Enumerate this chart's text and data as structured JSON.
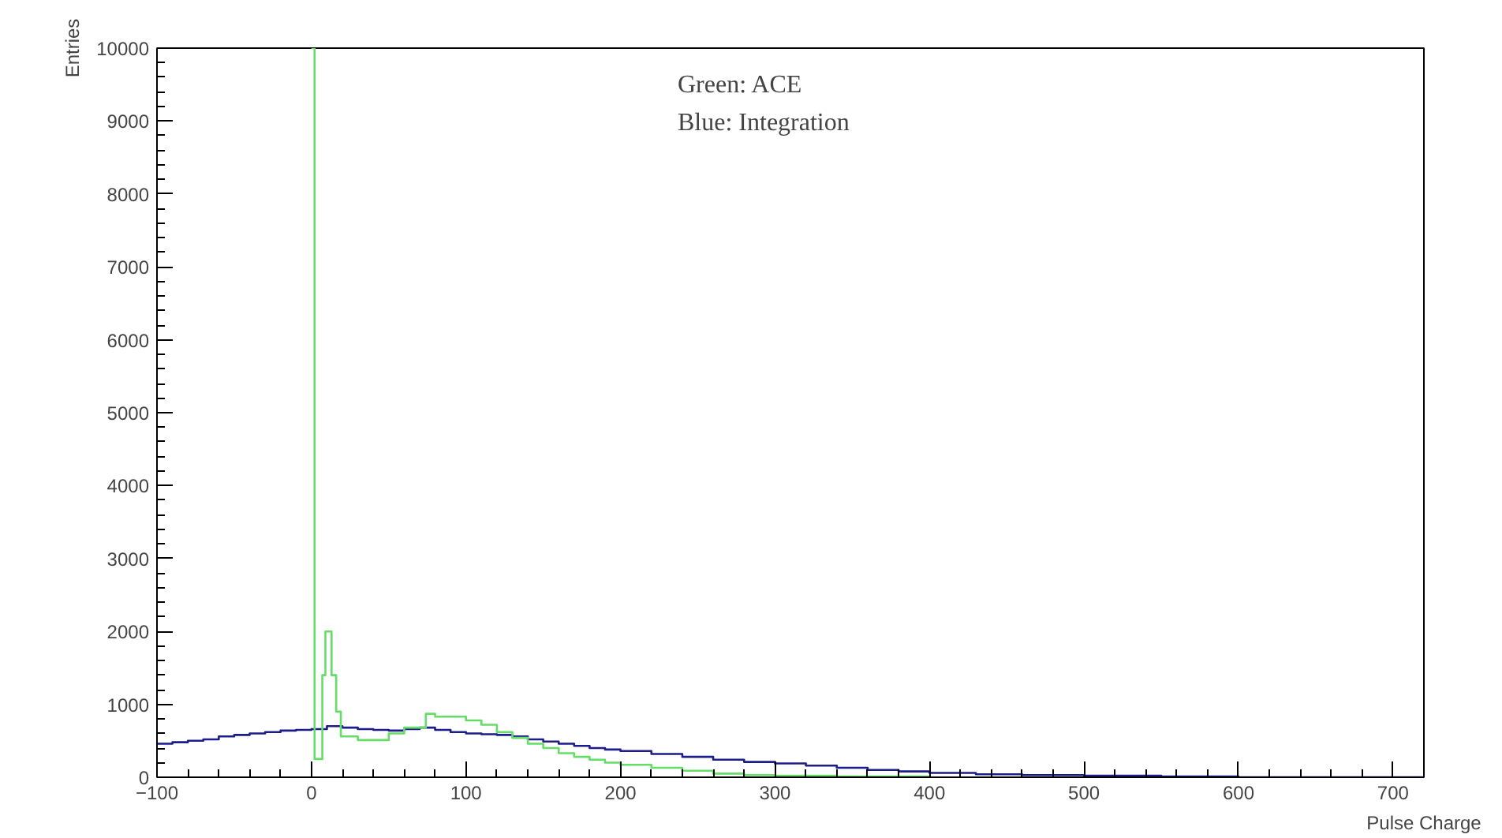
{
  "chart_data": {
    "type": "step",
    "xlabel": "Pulse Charge",
    "ylabel": "Entries",
    "xlim": [
      -100,
      720
    ],
    "ylim": [
      0,
      10000
    ],
    "xticks": [
      {
        "value": -100,
        "label": "−100"
      },
      0,
      100,
      200,
      300,
      400,
      500,
      600,
      700
    ],
    "yticks": [
      0,
      1000,
      2000,
      3000,
      4000,
      5000,
      6000,
      7000,
      8000,
      9000,
      10000
    ],
    "grid": false,
    "annotations": [
      "Green: ACE",
      "Blue: Integration"
    ],
    "series": [
      {
        "color": "#1c1c8a",
        "x": [
          -100,
          -90,
          -80,
          -70,
          -60,
          -50,
          -40,
          -30,
          -20,
          -10,
          0,
          10,
          20,
          30,
          40,
          50,
          60,
          70,
          80,
          90,
          100,
          110,
          120,
          130,
          140,
          150,
          160,
          170,
          180,
          190,
          200,
          220,
          240,
          260,
          280,
          300,
          320,
          340,
          360,
          380,
          400,
          430,
          460,
          500,
          550,
          600,
          720
        ],
        "values": [
          460,
          480,
          500,
          520,
          560,
          580,
          600,
          620,
          640,
          650,
          660,
          700,
          680,
          660,
          650,
          640,
          660,
          680,
          650,
          620,
          600,
          590,
          580,
          560,
          520,
          490,
          460,
          430,
          400,
          380,
          360,
          320,
          280,
          240,
          210,
          190,
          160,
          130,
          100,
          80,
          60,
          40,
          30,
          20,
          10,
          0,
          0
        ]
      },
      {
        "color": "#66dd66",
        "x": [
          0,
          2,
          7,
          9,
          13,
          16,
          19,
          30,
          50,
          60,
          74,
          80,
          100,
          110,
          120,
          130,
          140,
          150,
          160,
          170,
          180,
          190,
          200,
          220,
          240,
          260,
          280,
          300,
          340,
          400
        ],
        "values": [
          10000,
          250,
          1400,
          2000,
          1400,
          900,
          560,
          510,
          600,
          680,
          870,
          830,
          780,
          720,
          620,
          540,
          460,
          400,
          330,
          280,
          240,
          200,
          170,
          130,
          90,
          50,
          30,
          20,
          10,
          5
        ]
      }
    ]
  }
}
